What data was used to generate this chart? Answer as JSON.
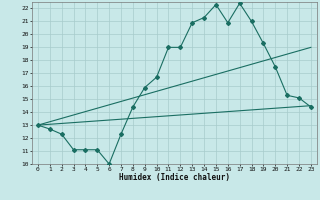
{
  "title": "",
  "xlabel": "Humidex (Indice chaleur)",
  "bg_color": "#c8e8e8",
  "grid_color": "#a8cccc",
  "line_color": "#1a6e62",
  "xlim": [
    -0.5,
    23.5
  ],
  "ylim": [
    10,
    22.5
  ],
  "xticks": [
    0,
    1,
    2,
    3,
    4,
    5,
    6,
    7,
    8,
    9,
    10,
    11,
    12,
    13,
    14,
    15,
    16,
    17,
    18,
    19,
    20,
    21,
    22,
    23
  ],
  "yticks": [
    10,
    11,
    12,
    13,
    14,
    15,
    16,
    17,
    18,
    19,
    20,
    21,
    22
  ],
  "line1_x": [
    0,
    1,
    2,
    3,
    4,
    5,
    6,
    7,
    8,
    9,
    10,
    11,
    12,
    13,
    14,
    15,
    16,
    17,
    18,
    19,
    20,
    21,
    22,
    23
  ],
  "line1_y": [
    13.0,
    12.7,
    12.3,
    11.1,
    11.1,
    11.1,
    10.0,
    12.3,
    14.4,
    15.9,
    16.7,
    19.0,
    19.0,
    20.9,
    21.3,
    22.3,
    20.9,
    22.4,
    21.0,
    19.3,
    17.5,
    15.3,
    15.1,
    14.4
  ],
  "line2_x": [
    0,
    23
  ],
  "line2_y": [
    13.0,
    14.5
  ],
  "line3_x": [
    0,
    23
  ],
  "line3_y": [
    13.0,
    19.0
  ]
}
